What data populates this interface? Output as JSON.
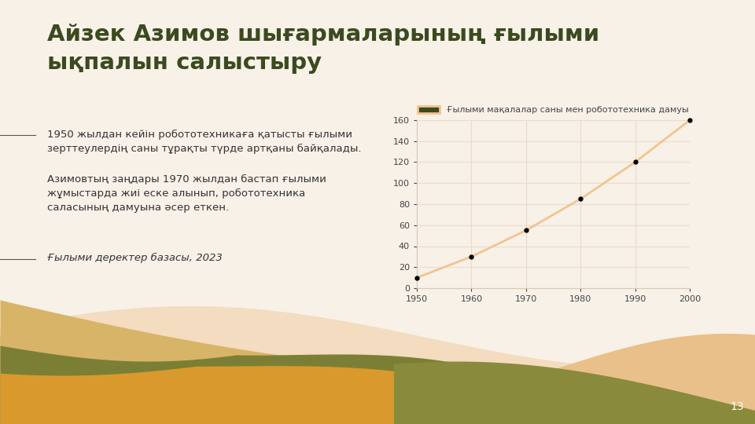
{
  "title": "Айзек Азимов шығармаларының ғылыми\nықпалын салыстыру",
  "text": [
    "1950 жылдан кейін робототехникаға қатысты ғылыми\nзерттеулердің саны тұрақты түрде артқаны байқалады.",
    "Азимовтың заңдары 1970 жылдан бастап ғылыми\nжұмыстарда жиі еске алынып, робототехника\nсаласының дамуына әсер еткен."
  ],
  "source": "Ғылыми деректер базасы, 2023",
  "page": "13",
  "chart_data": {
    "type": "line",
    "x": [
      1950,
      1960,
      1970,
      1980,
      1990,
      2000
    ],
    "series": [
      {
        "name": "Ғылыми мақалалар саны мен робототехника дамуы",
        "color": "#f2c490",
        "marker": "o",
        "line_style": "solid",
        "values": [
          10,
          30,
          55,
          85,
          120,
          160
        ]
      }
    ],
    "xlim": [
      1950,
      2000
    ],
    "xticks": [
      1950,
      1960,
      1970,
      1980,
      1990,
      2000
    ],
    "ylim": [
      0,
      160
    ],
    "yticks": [
      0,
      20,
      40,
      60,
      80,
      100,
      120,
      140,
      160
    ],
    "grid": true,
    "legend": "upper center"
  }
}
